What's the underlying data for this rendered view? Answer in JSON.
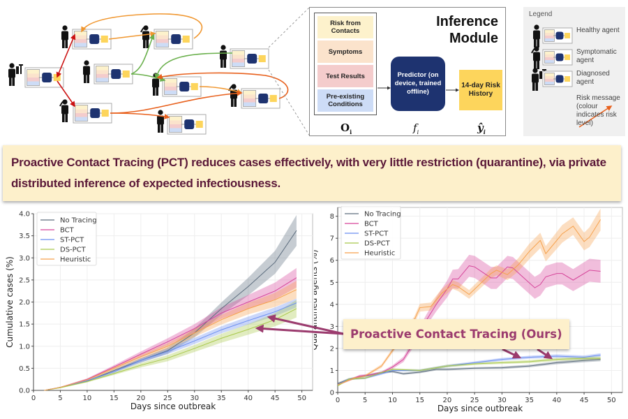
{
  "diagram": {
    "inference_title_line1": "Inference",
    "inference_title_line2": "Module",
    "observations": [
      "Risk from Contacts",
      "Symptoms",
      "Test Results",
      "Pre-existing Conditions"
    ],
    "observation_colors": [
      "#fdf2cc",
      "#fbe3cc",
      "#f4cccc",
      "#cddcf6"
    ],
    "predictor": "Predictor (on device, trained offline)",
    "output": "14-day Risk History",
    "symbol_obs": "O",
    "symbol_predictor": "f",
    "symbol_output": "ŷ",
    "subscript": "i",
    "colors": {
      "predictor": "#1e3370",
      "output": "#fdd55c",
      "risk_red": "#cc1111",
      "risk_orange": "#f0962e",
      "risk_dark_orange": "#e8601c",
      "risk_green": "#6ab04c"
    }
  },
  "legend": {
    "title": "Legend",
    "items": [
      {
        "icon": "healthy-agent-icon",
        "label": "Healthy agent"
      },
      {
        "icon": "symptomatic-agent-icon",
        "label": "Symptomatic agent"
      },
      {
        "icon": "diagnosed-agent-icon",
        "label": "Diagnosed agent"
      },
      {
        "icon": "risk-arrow-icon",
        "label": "Risk message (colour indicates risk level)"
      }
    ]
  },
  "banner": "Proactive Contact Tracing (PCT) reduces cases effectively, with very little restriction (quarantine), via private distributed inference of expected infectiousness.",
  "callout": "Proactive Contact Tracing (Ours)",
  "chart_data": [
    {
      "type": "line",
      "xlabel": "Days since outbreak",
      "ylabel": "Cumulative cases (%)",
      "xlim": [
        0,
        52
      ],
      "ylim": [
        0,
        4.0
      ],
      "xticks": [
        0,
        5,
        10,
        15,
        20,
        25,
        30,
        35,
        40,
        45,
        50
      ],
      "yticks": [
        "0.0",
        "0.5",
        "1.0",
        "1.5",
        "2.0",
        "2.5",
        "3.0",
        "3.5",
        "4.0"
      ],
      "grid": true,
      "legend": "top-left",
      "band": "confidence interval",
      "series": [
        {
          "name": "No Tracing",
          "color": "#5d6d7e",
          "x": [
            2,
            5,
            10,
            15,
            20,
            25,
            30,
            35,
            40,
            45,
            49
          ],
          "y": [
            0,
            0.07,
            0.21,
            0.45,
            0.68,
            0.9,
            1.3,
            1.85,
            2.35,
            2.9,
            3.62
          ],
          "ci": [
            0,
            0.01,
            0.02,
            0.03,
            0.05,
            0.07,
            0.1,
            0.14,
            0.2,
            0.26,
            0.35
          ]
        },
        {
          "name": "BCT",
          "color": "#d6459a",
          "x": [
            2,
            5,
            10,
            15,
            20,
            25,
            30,
            35,
            40,
            45,
            49
          ],
          "y": [
            0,
            0.07,
            0.25,
            0.53,
            0.82,
            1.1,
            1.4,
            1.75,
            2.0,
            2.25,
            2.55
          ],
          "ci": [
            0,
            0.01,
            0.02,
            0.04,
            0.06,
            0.08,
            0.1,
            0.13,
            0.16,
            0.19,
            0.22
          ]
        },
        {
          "name": "ST-PCT",
          "color": "#6b8df0",
          "x": [
            2,
            5,
            10,
            15,
            20,
            25,
            30,
            35,
            40,
            45,
            49
          ],
          "y": [
            0,
            0.07,
            0.22,
            0.42,
            0.68,
            0.88,
            1.12,
            1.37,
            1.58,
            1.78,
            1.98
          ],
          "ci": [
            0,
            0.01,
            0.02,
            0.03,
            0.05,
            0.06,
            0.07,
            0.08,
            0.09,
            0.1,
            0.1
          ]
        },
        {
          "name": "DS-PCT",
          "color": "#a8c84a",
          "x": [
            2,
            5,
            10,
            15,
            20,
            25,
            30,
            35,
            40,
            45,
            49
          ],
          "y": [
            0,
            0.06,
            0.2,
            0.38,
            0.57,
            0.73,
            0.95,
            1.18,
            1.38,
            1.6,
            1.85
          ],
          "ci": [
            0,
            0.01,
            0.02,
            0.03,
            0.05,
            0.07,
            0.08,
            0.1,
            0.12,
            0.15,
            0.2
          ]
        },
        {
          "name": "Heuristic",
          "color": "#f6a14c",
          "x": [
            2,
            5,
            10,
            15,
            20,
            25,
            30,
            35,
            40,
            45,
            49
          ],
          "y": [
            0,
            0.07,
            0.24,
            0.5,
            0.76,
            1.0,
            1.3,
            1.6,
            1.85,
            2.05,
            2.28
          ],
          "ci": [
            0,
            0.01,
            0.02,
            0.04,
            0.05,
            0.07,
            0.09,
            0.11,
            0.13,
            0.16,
            0.2
          ]
        }
      ]
    },
    {
      "type": "line",
      "xlabel": "Days since outbreak",
      "ylabel": "Quarantined agents (%)",
      "xlim": [
        0,
        52
      ],
      "ylim": [
        0,
        8.4
      ],
      "xticks": [
        0,
        5,
        10,
        15,
        20,
        25,
        30,
        35,
        40,
        45,
        50
      ],
      "yticks": [
        "0",
        "1",
        "2",
        "3",
        "4",
        "5",
        "6",
        "7",
        "8"
      ],
      "grid": true,
      "legend": "top-left",
      "band": "confidence interval",
      "series": [
        {
          "name": "No Tracing",
          "color": "#5d6d7e",
          "x": [
            0,
            2,
            5,
            8,
            10,
            12,
            15,
            18,
            20,
            25,
            30,
            35,
            40,
            45,
            48
          ],
          "y": [
            0.4,
            0.6,
            0.75,
            0.9,
            0.95,
            0.85,
            0.92,
            1.05,
            1.05,
            1.1,
            1.12,
            1.2,
            1.35,
            1.45,
            1.5
          ],
          "ci": [
            0.05,
            0.05,
            0.05,
            0.05,
            0.05,
            0.05,
            0.05,
            0.05,
            0.05,
            0.05,
            0.06,
            0.06,
            0.07,
            0.08,
            0.08
          ]
        },
        {
          "name": "BCT",
          "color": "#d6459a",
          "x": [
            0,
            4,
            6,
            8,
            10,
            12,
            14,
            16,
            18,
            20,
            21,
            22,
            24,
            25,
            28,
            29,
            31,
            32,
            34,
            36,
            37,
            38,
            40,
            41,
            43,
            46,
            48
          ],
          "y": [
            0.35,
            0.75,
            0.8,
            0.9,
            1.15,
            1.5,
            2.3,
            3.2,
            4.0,
            4.7,
            5.15,
            5.15,
            5.75,
            5.7,
            5.2,
            5.2,
            5.7,
            5.65,
            5.2,
            4.75,
            4.9,
            5.25,
            5.4,
            5.4,
            5.1,
            5.55,
            5.5
          ],
          "ci": [
            0.03,
            0.05,
            0.05,
            0.06,
            0.08,
            0.12,
            0.18,
            0.25,
            0.32,
            0.38,
            0.42,
            0.45,
            0.5,
            0.5,
            0.5,
            0.5,
            0.5,
            0.5,
            0.5,
            0.5,
            0.5,
            0.5,
            0.5,
            0.5,
            0.5,
            0.52,
            0.52
          ]
        },
        {
          "name": "ST-PCT",
          "color": "#6b8df0",
          "x": [
            0,
            2,
            5,
            8,
            10,
            15,
            20,
            25,
            30,
            35,
            40,
            45,
            48
          ],
          "y": [
            0.35,
            0.6,
            0.65,
            0.85,
            1.0,
            1.0,
            1.2,
            1.35,
            1.5,
            1.6,
            1.65,
            1.6,
            1.7
          ],
          "ci": [
            0.03,
            0.04,
            0.04,
            0.05,
            0.05,
            0.05,
            0.06,
            0.06,
            0.07,
            0.07,
            0.08,
            0.08,
            0.08
          ]
        },
        {
          "name": "DS-PCT",
          "color": "#a8c84a",
          "x": [
            0,
            2,
            5,
            8,
            10,
            15,
            20,
            25,
            30,
            35,
            40,
            45,
            48
          ],
          "y": [
            0.3,
            0.6,
            0.65,
            0.9,
            1.05,
            1.0,
            1.2,
            1.3,
            1.35,
            1.4,
            1.5,
            1.55,
            1.55
          ],
          "ci": [
            0.03,
            0.04,
            0.04,
            0.05,
            0.05,
            0.05,
            0.06,
            0.06,
            0.06,
            0.07,
            0.07,
            0.08,
            0.08
          ]
        },
        {
          "name": "Heuristic",
          "color": "#f6a14c",
          "x": [
            0,
            3,
            5,
            8,
            10,
            12,
            14,
            15,
            17,
            19,
            21,
            22,
            24,
            28,
            29,
            31,
            33,
            35,
            37,
            38,
            41,
            43,
            45,
            46,
            48
          ],
          "y": [
            0.35,
            0.65,
            0.75,
            1.2,
            1.9,
            2.6,
            3.3,
            3.85,
            3.9,
            4.5,
            4.9,
            4.8,
            4.45,
            5.4,
            5.55,
            5.35,
            5.8,
            6.4,
            6.9,
            6.3,
            7.2,
            7.55,
            6.85,
            7.05,
            7.85
          ],
          "ci": [
            0.03,
            0.05,
            0.05,
            0.08,
            0.1,
            0.12,
            0.15,
            0.18,
            0.18,
            0.2,
            0.2,
            0.2,
            0.2,
            0.22,
            0.22,
            0.25,
            0.3,
            0.35,
            0.35,
            0.35,
            0.4,
            0.4,
            0.4,
            0.45,
            0.5
          ]
        }
      ]
    }
  ]
}
